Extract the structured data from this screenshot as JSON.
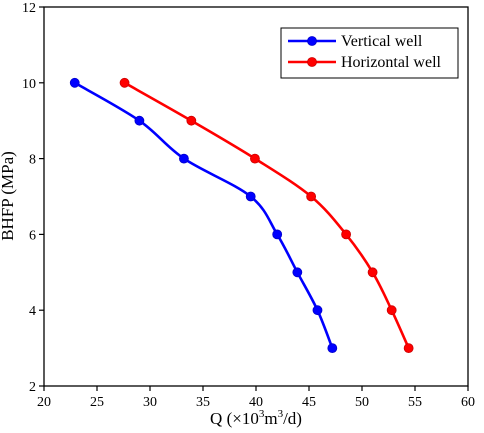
{
  "chart_data": {
    "type": "line",
    "xlabel": "Q (×10³m³/d)",
    "xlabel_parts": [
      "Q (×10",
      "3",
      "m",
      "3",
      "/d)"
    ],
    "ylabel": "BHFP (MPa)",
    "xlim": [
      20,
      60
    ],
    "ylim": [
      2,
      12
    ],
    "xticks": [
      20,
      25,
      30,
      35,
      40,
      45,
      50,
      55,
      60
    ],
    "yticks": [
      2,
      4,
      6,
      8,
      10,
      12
    ],
    "grid": false,
    "legend_position": "top-right",
    "series": [
      {
        "name": "Vertical well",
        "color": "#0000ff",
        "x": [
          22.9,
          29.0,
          33.2,
          39.5,
          42.0,
          43.9,
          45.8,
          47.2
        ],
        "y": [
          10,
          9,
          8,
          7,
          6,
          5,
          4,
          3
        ]
      },
      {
        "name": "Horizontal well",
        "color": "#ff0000",
        "x": [
          27.6,
          33.9,
          39.9,
          45.2,
          48.5,
          51.0,
          52.8,
          54.4
        ],
        "y": [
          10,
          9,
          8,
          7,
          6,
          5,
          4,
          3
        ]
      }
    ]
  }
}
